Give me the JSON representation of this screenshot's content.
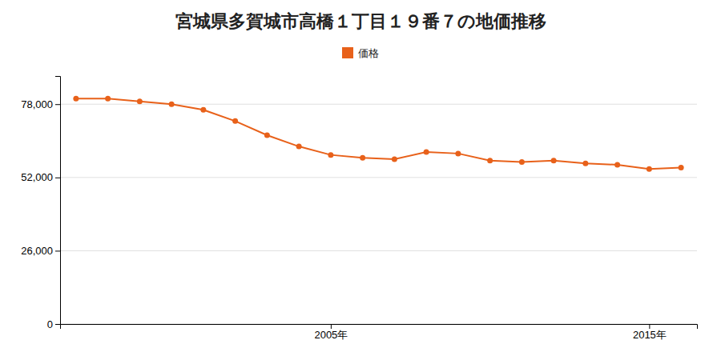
{
  "chart_data": {
    "type": "line",
    "title": "宮城県多賀城市高橋１丁目１９番７の地価推移",
    "x": [
      1997,
      1998,
      1999,
      2000,
      2001,
      2002,
      2003,
      2004,
      2005,
      2006,
      2007,
      2008,
      2009,
      2010,
      2011,
      2012,
      2013,
      2014,
      2015,
      2016
    ],
    "series": [
      {
        "name": "価格",
        "color": "#e8611a",
        "marker": "circle",
        "values": [
          80000,
          80000,
          79000,
          78000,
          76000,
          72000,
          67000,
          63000,
          60000,
          59000,
          58500,
          61000,
          60500,
          58000,
          57500,
          58000,
          57000,
          56500,
          55000,
          55500
        ]
      }
    ],
    "xlim": [
      1996.5,
      2016.5
    ],
    "xticks": [
      {
        "value": 2005,
        "label": "2005年"
      },
      {
        "value": 2015,
        "label": "2015年"
      }
    ],
    "ylim": [
      0,
      88000
    ],
    "yticks": [
      0,
      {
        "value": 26000,
        "label": "26,000"
      },
      {
        "value": 52000,
        "label": "52,000"
      },
      {
        "value": 78000,
        "label": "78,000"
      }
    ],
    "grid": true,
    "legend": "top"
  }
}
